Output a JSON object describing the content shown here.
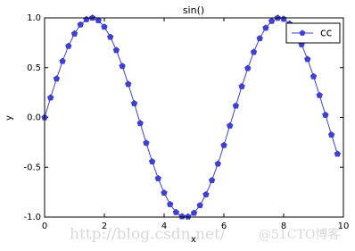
{
  "chart_data": {
    "type": "line",
    "title": "sin()",
    "x_label": "x",
    "y_label": "y",
    "x": [
      0,
      0.2,
      0.4,
      0.6,
      0.8,
      1.0,
      1.2,
      1.4,
      1.6,
      1.8,
      2.0,
      2.2,
      2.4,
      2.6,
      2.8,
      3.0,
      3.2,
      3.4,
      3.6,
      3.8,
      4.0,
      4.2,
      4.4,
      4.6,
      4.8,
      5.0,
      5.2,
      5.4,
      5.6,
      5.8,
      6.0,
      6.2,
      6.4,
      6.6,
      6.8,
      7.0,
      7.2,
      7.4,
      7.6,
      7.8,
      8.0,
      8.2,
      8.4,
      8.6,
      8.8,
      9.0,
      9.2,
      9.4,
      9.6,
      9.8
    ],
    "series": [
      {
        "name": "cc",
        "color": "#3f3fd0",
        "values": [
          0,
          0.199,
          0.389,
          0.565,
          0.717,
          0.841,
          0.932,
          0.985,
          1.0,
          0.974,
          0.909,
          0.808,
          0.675,
          0.516,
          0.335,
          0.141,
          -0.058,
          -0.256,
          -0.443,
          -0.612,
          -0.757,
          -0.872,
          -0.952,
          -0.994,
          -0.996,
          -0.959,
          -0.883,
          -0.773,
          -0.631,
          -0.465,
          -0.279,
          -0.083,
          0.117,
          0.312,
          0.494,
          0.657,
          0.794,
          0.899,
          0.968,
          0.999,
          0.989,
          0.941,
          0.855,
          0.734,
          0.585,
          0.412,
          0.223,
          0.025,
          -0.174,
          -0.366
        ]
      }
    ],
    "xlim": [
      0,
      10
    ],
    "xticks": [
      0,
      2,
      4,
      6,
      8,
      10
    ],
    "ylim": [
      -1,
      1
    ],
    "yticks": [
      {
        "value": -1,
        "label": "-1.0"
      },
      {
        "value": -0.5,
        "label": "-0.5"
      },
      {
        "value": 0,
        "label": "0.0"
      },
      {
        "value": 0.5,
        "label": "0.5"
      },
      {
        "value": 1,
        "label": "1.0"
      }
    ],
    "legend": "upper right",
    "grid": false,
    "watermark": "http://blog.csdn.net/",
    "watermark_2": "@51CTO博客"
  }
}
